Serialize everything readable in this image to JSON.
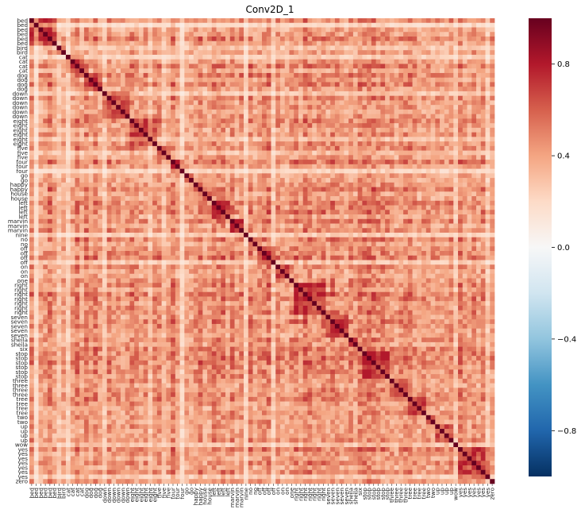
{
  "chart_data": {
    "type": "heatmap",
    "title": "Conv2D_1",
    "xlabel": "",
    "ylabel": "",
    "labels": [
      "bed",
      "bed",
      "bed",
      "bed",
      "bed",
      "bed",
      "bird",
      "bird",
      "cat",
      "cat",
      "cat",
      "cat",
      "dog",
      "dog",
      "dog",
      "dog",
      "down",
      "down",
      "down",
      "down",
      "down",
      "down",
      "eight",
      "eight",
      "eight",
      "eight",
      "eight",
      "eight",
      "five",
      "five",
      "five",
      "four",
      "four",
      "four",
      "go",
      "go",
      "happy",
      "happy",
      "house",
      "house",
      "left",
      "left",
      "left",
      "left",
      "marvin",
      "marvin",
      "marvin",
      "nine",
      "no",
      "no",
      "off",
      "off",
      "off",
      "off",
      "on",
      "on",
      "on",
      "one",
      "right",
      "right",
      "right",
      "right",
      "right",
      "right",
      "right",
      "seven",
      "seven",
      "seven",
      "seven",
      "seven",
      "sheila",
      "sheila",
      "six",
      "stop",
      "stop",
      "stop",
      "stop",
      "stop",
      "stop",
      "three",
      "three",
      "three",
      "three",
      "tree",
      "tree",
      "tree",
      "tree",
      "two",
      "two",
      "up",
      "up",
      "up",
      "up",
      "wow",
      "yes",
      "yes",
      "yes",
      "yes",
      "yes",
      "yes",
      "yes",
      "zero"
    ],
    "colorbar": {
      "colormap": "RdBu_r",
      "range": [
        -1,
        1
      ],
      "ticks": [
        -0.8,
        -0.4,
        0.0,
        0.4,
        0.8
      ],
      "tick_labels": [
        "−0.8",
        "−0.4",
        "0.0",
        "0.4",
        "0.8"
      ]
    },
    "diagonal_value": 1.0,
    "off_diagonal_range": [
      0.0,
      0.75
    ],
    "grid": false
  }
}
